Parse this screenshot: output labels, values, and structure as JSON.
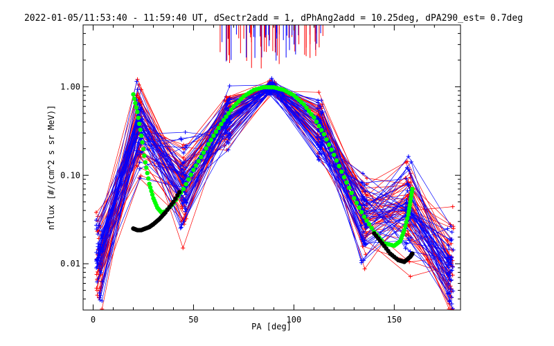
{
  "chart_data": {
    "type": "line",
    "title": "2022-01-05/11:53:40 - 11:59:40 UT, dSectr2add = 1, dPhAng2add = 10.25deg, dPA290_est=   0.7deg",
    "xlabel": "PA [deg]",
    "ylabel": "nflux [#/(cm^2 s sr MeV)]",
    "xlim": [
      -5,
      183
    ],
    "ylim": [
      0.003,
      5
    ],
    "yscale": "log",
    "grid": false,
    "x_ticks": [
      0,
      50,
      100,
      150
    ],
    "x_tick_labels": [
      "0",
      "50",
      "100",
      "150"
    ],
    "y_ticks": [
      0.01,
      0.1,
      1.0
    ],
    "y_tick_labels": [
      "0.01",
      "0.10",
      "1.00"
    ],
    "colors": {
      "red_traces": "#ff0000",
      "blue_traces": "#0000ff",
      "green_fit": "#00ff00",
      "black_fit": "#000000",
      "axes": "#000000"
    },
    "trace_pa_bins": [
      3,
      23,
      45,
      67,
      89,
      113,
      135,
      157,
      178
    ],
    "trace_count": {
      "red": 45,
      "blue": 45
    },
    "peak": {
      "pa": 90,
      "value": 1.0
    },
    "series": [
      {
        "color": "#00ff00",
        "marker": "dot",
        "x": [
          20,
          22,
          24,
          26,
          28,
          30,
          32,
          34,
          36,
          40,
          45,
          50,
          55,
          60,
          65,
          70,
          75,
          80,
          85,
          90,
          95,
          100,
          105,
          110,
          115,
          120,
          125,
          130,
          135,
          140,
          145,
          150,
          153,
          155,
          157,
          158,
          159
        ],
        "values": [
          0.82,
          0.52,
          0.28,
          0.14,
          0.08,
          0.055,
          0.043,
          0.038,
          0.039,
          0.048,
          0.07,
          0.115,
          0.18,
          0.28,
          0.42,
          0.6,
          0.78,
          0.92,
          0.99,
          0.985,
          0.92,
          0.8,
          0.63,
          0.45,
          0.29,
          0.17,
          0.095,
          0.055,
          0.034,
          0.023,
          0.017,
          0.016,
          0.018,
          0.024,
          0.036,
          0.05,
          0.07
        ]
      },
      {
        "color": "#000000",
        "marker": "dot",
        "x": [
          20,
          22,
          24,
          26,
          28,
          30,
          33,
          36,
          40,
          44,
          140,
          144,
          148,
          152,
          155,
          158,
          159
        ],
        "values": [
          0.025,
          0.024,
          0.024,
          0.025,
          0.026,
          0.028,
          0.032,
          0.038,
          0.05,
          0.07,
          0.022,
          0.017,
          0.013,
          0.011,
          0.0105,
          0.012,
          0.013
        ]
      }
    ]
  }
}
